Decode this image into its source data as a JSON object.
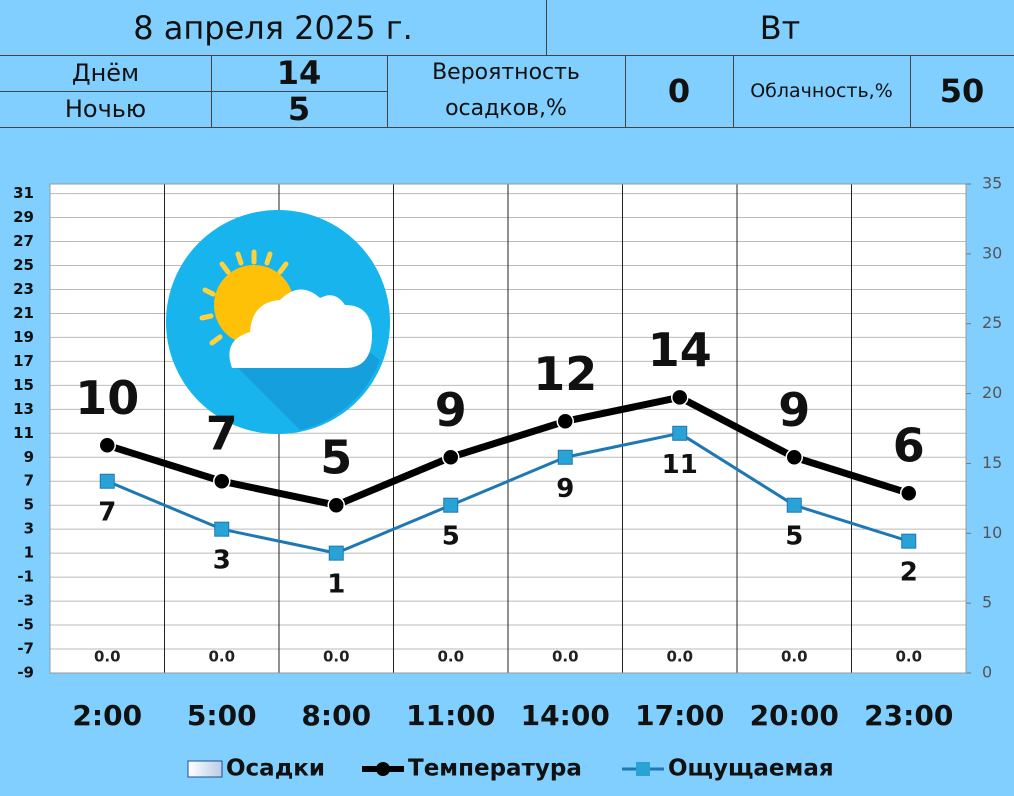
{
  "header": {
    "date": "8 апреля 2025 г.",
    "weekday": "Вт",
    "day_label": "Днём",
    "day_value": 14,
    "night_label": "Ночью",
    "night_value": 5,
    "precip_label": "Вероятность осадков,%",
    "precip_value": 0,
    "cloud_label": "Облачность,%",
    "cloud_value": 50
  },
  "chart_data": {
    "type": "line",
    "categories": [
      "2:00",
      "5:00",
      "8:00",
      "11:00",
      "14:00",
      "17:00",
      "20:00",
      "23:00"
    ],
    "series": [
      {
        "name": "Осадки",
        "type": "bar",
        "axis": "y2",
        "color": "#dde8f5",
        "values": [
          0,
          0,
          0,
          0,
          0,
          0,
          0,
          0
        ],
        "value_labels": [
          "0.0",
          "0.0",
          "0.0",
          "0.0",
          "0.0",
          "0.0",
          "0.0",
          "0.0"
        ]
      },
      {
        "name": "Температура",
        "color": "#000000",
        "values": [
          10,
          7,
          5,
          9,
          12,
          14,
          9,
          6
        ]
      },
      {
        "name": "Ощущаемая",
        "color": "#1e78b4",
        "values": [
          7,
          3,
          1,
          5,
          9,
          11,
          5,
          2
        ]
      }
    ],
    "ylim": [
      -9,
      31.8
    ],
    "yticks": [
      -9,
      -7,
      -5,
      -3,
      -1,
      1,
      3,
      5,
      7,
      9,
      11,
      13,
      15,
      17,
      19,
      21,
      23,
      25,
      27,
      29,
      31
    ],
    "y2lim": [
      0,
      35
    ],
    "y2ticks": [
      0,
      5,
      10,
      15,
      20,
      25,
      30,
      35
    ],
    "grid": true
  }
}
